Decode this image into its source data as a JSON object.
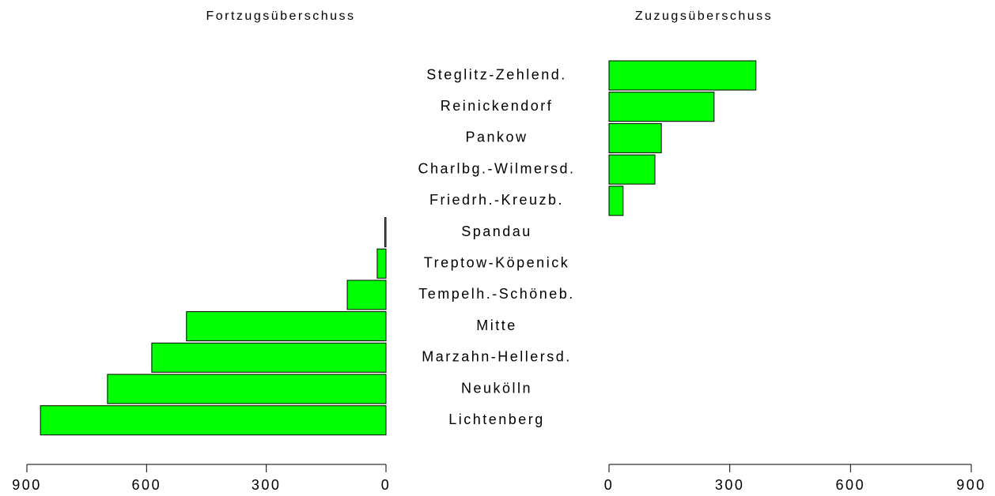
{
  "chart_data": {
    "type": "butterfly",
    "categories": [
      "Steglitz-Zehlend.",
      "Reinickendorf",
      "Pankow",
      "Charlbg.-Wilmersd.",
      "Friedrh.-Kreuzb.",
      "Spandau",
      "Treptow-Köpenick",
      "Tempelh.-Schöneb.",
      "Mitte",
      "Marzahn-Hellersd.",
      "Neukölln",
      "Lichtenberg"
    ],
    "series": [
      {
        "name": "Fortzugsüberschuss",
        "color": "#00ff00",
        "values": [
          0,
          0,
          0,
          0,
          0,
          3,
          22,
          97,
          500,
          587,
          698,
          866
        ]
      },
      {
        "name": "Zuzugsüberschuss",
        "color": "#00ff00",
        "values": [
          365,
          261,
          130,
          114,
          35,
          0,
          0,
          0,
          0,
          0,
          0,
          0
        ]
      }
    ],
    "xlim": [
      0,
      900
    ],
    "xticks": [
      0,
      300,
      600,
      900
    ]
  }
}
